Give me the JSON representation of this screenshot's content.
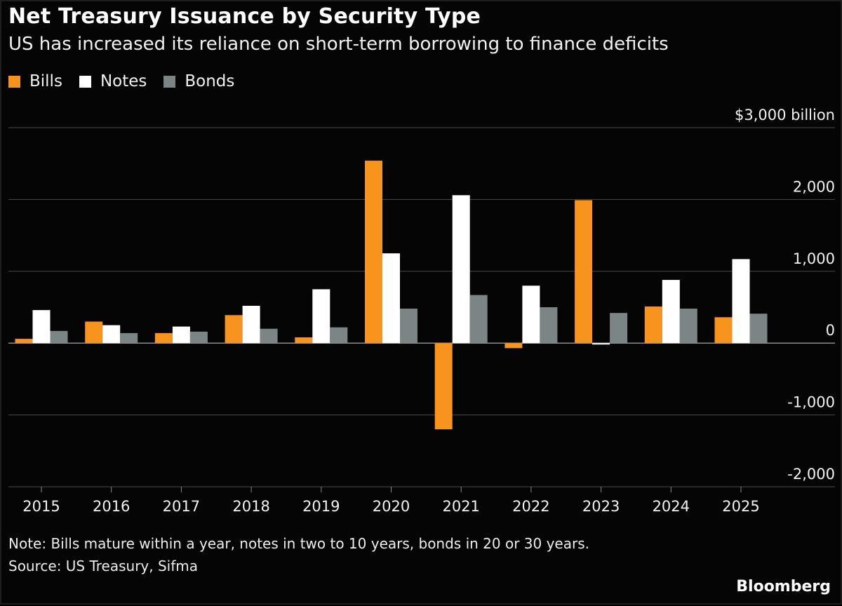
{
  "title": "Net Treasury Issuance by Security Type",
  "subtitle": "US has increased its reliance on short-term borrowing to finance deficits",
  "legend": [
    {
      "label": "Bills",
      "color": "#f7941d"
    },
    {
      "label": "Notes",
      "color": "#ffffff"
    },
    {
      "label": "Bonds",
      "color": "#7c8585"
    }
  ],
  "footer": {
    "note": "Note: Bills mature within a year, notes in two to 10 years, bonds in 20 or 30 years.",
    "source": "Source: US Treasury, Sifma",
    "brand": "Bloomberg"
  },
  "chart_data": {
    "type": "bar",
    "title": "Net Treasury Issuance by Security Type",
    "subtitle": "US has increased its reliance on short-term borrowing to finance deficits",
    "categories": [
      "2015",
      "2016",
      "2017",
      "2018",
      "2019",
      "2020",
      "2021",
      "2022",
      "2023",
      "2024",
      "2025"
    ],
    "series": [
      {
        "name": "Bills",
        "color": "#f7941d",
        "values": [
          60,
          300,
          140,
          390,
          80,
          2540,
          -1200,
          -70,
          1990,
          510,
          360
        ]
      },
      {
        "name": "Notes",
        "color": "#ffffff",
        "values": [
          460,
          250,
          230,
          520,
          750,
          1250,
          2060,
          800,
          -20,
          880,
          1170
        ]
      },
      {
        "name": "Bonds",
        "color": "#7c8585",
        "values": [
          170,
          140,
          160,
          200,
          220,
          480,
          670,
          500,
          420,
          480,
          410
        ]
      }
    ],
    "ylim": [
      -2000,
      3000
    ],
    "yticks": [
      {
        "value": 3000,
        "label": "$3,000 billion"
      },
      {
        "value": 2000,
        "label": "2,000"
      },
      {
        "value": 1000,
        "label": "1,000"
      },
      {
        "value": 0,
        "label": "0"
      },
      {
        "value": -1000,
        "label": "-1,000"
      },
      {
        "value": -2000,
        "label": "-2,000"
      }
    ],
    "xlabel": "",
    "ylabel": "",
    "grid": true,
    "legend_position": "top-left"
  }
}
